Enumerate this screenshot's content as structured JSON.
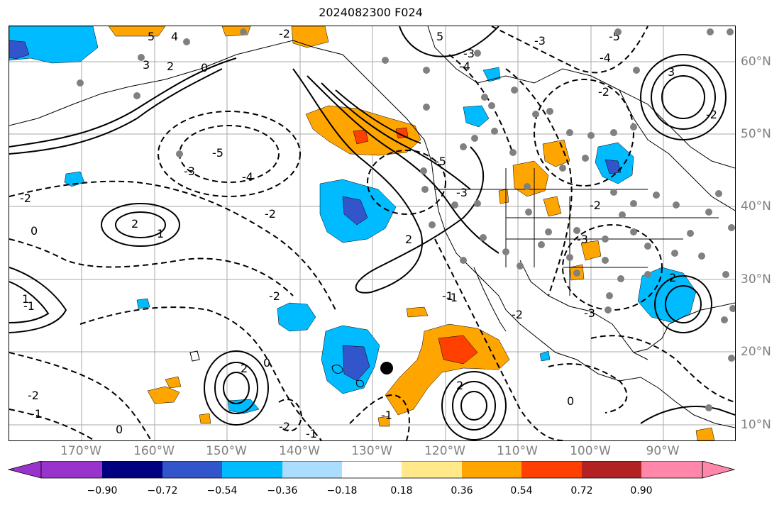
{
  "title": "2024082300 F024",
  "lon_labels": [
    "170°W",
    "160°W",
    "150°W",
    "140°W",
    "130°W",
    "120°W",
    "110°W",
    "100°W",
    "90°W"
  ],
  "lat_labels": [
    "60°N",
    "50°N",
    "40°N",
    "30°N",
    "20°N",
    "10°N"
  ],
  "colorbar": {
    "ticks": [
      "−0.90",
      "−0.72",
      "−0.54",
      "−0.36",
      "−0.18",
      "0.18",
      "0.36",
      "0.54",
      "0.72",
      "0.90"
    ],
    "colors": [
      "#9933cc",
      "#000080",
      "#3355cc",
      "#00bbff",
      "#aaddff",
      "#ffffff",
      "#ffe98a",
      "#ffa500",
      "#ff4000",
      "#b22222",
      "#ff88aa"
    ]
  },
  "contour_labels": [
    "5",
    "4",
    "3",
    "2",
    "-2",
    "0",
    "-5",
    "-3",
    "5",
    "-4",
    "-5",
    "-3",
    "-2",
    "0",
    "-1",
    "2",
    "1",
    "-4",
    "-3",
    "-2",
    "-1",
    "2",
    "-3",
    "-2",
    "0",
    "2",
    "1",
    "-2",
    "-1",
    "2",
    "0",
    "-2",
    "-2",
    "-2",
    "2",
    "-1",
    "-2",
    "-1",
    "0",
    "-5",
    "-2",
    "-4",
    "-3",
    "3",
    "-1",
    "-3"
  ],
  "colors": {
    "grid": "#aaaaaa",
    "coast": "#000000",
    "dot": "#808080",
    "axis_text": "#808080"
  }
}
